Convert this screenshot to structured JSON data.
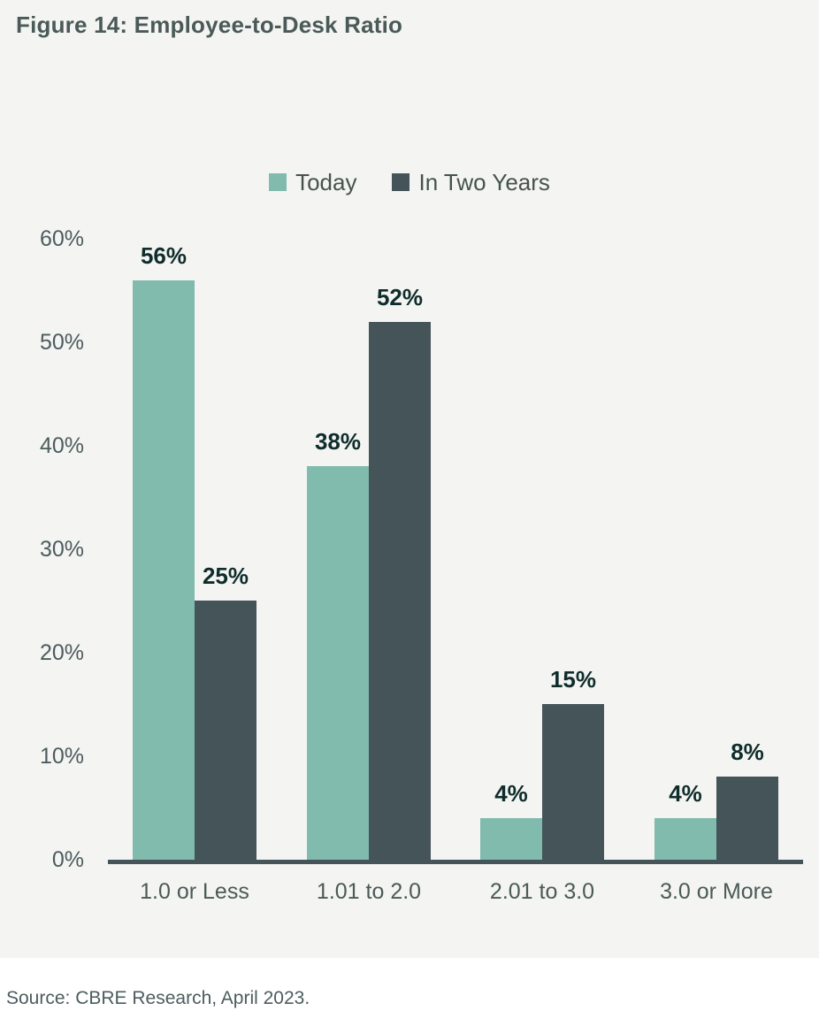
{
  "title": "Figure 14: Employee-to-Desk Ratio",
  "source": "Source: CBRE Research, April 2023.",
  "colors": {
    "chart_background": "#f4f4f2",
    "footer_background": "#ffffff",
    "series_today": "#80bbad",
    "series_in_two_years": "#455459",
    "data_label": "#0e2d2b",
    "axis_text": "#4d5c5e",
    "title_text": "#4a5a58",
    "axis_line": "#455459"
  },
  "chart_data": {
    "type": "bar",
    "title": "Figure 14: Employee-to-Desk Ratio",
    "categories": [
      "1.0 or Less",
      "1.01 to 2.0",
      "2.01 to 3.0",
      "3.0 or More"
    ],
    "series": [
      {
        "name": "Today",
        "color": "#80bbad",
        "values": [
          56,
          38,
          4,
          4
        ]
      },
      {
        "name": "In Two Years",
        "color": "#455459",
        "values": [
          25,
          52,
          15,
          8
        ]
      }
    ],
    "value_label_format": "{value}%",
    "xlabel": "",
    "ylabel": "",
    "ylim": [
      0,
      60
    ],
    "yticks": [
      0,
      10,
      20,
      30,
      40,
      50,
      60
    ],
    "ytick_labels": [
      "0%",
      "10%",
      "20%",
      "30%",
      "40%",
      "50%",
      "60%"
    ],
    "grid": false,
    "legend_position": "top-center",
    "source": "Source: CBRE Research, April 2023."
  }
}
